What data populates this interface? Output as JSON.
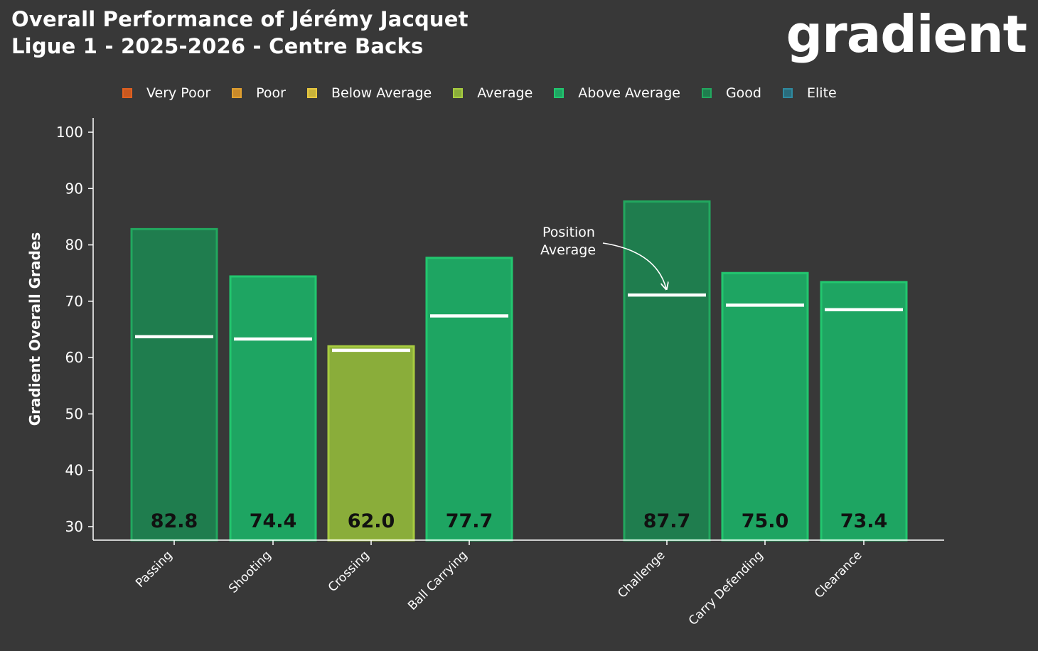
{
  "header": {
    "title_line1": "Overall Performance of Jérémy Jacquet",
    "title_line2": "Ligue 1 - 2025-2026 - Centre Backs",
    "brand": "gradient"
  },
  "legend": {
    "items": [
      {
        "label": "Very Poor",
        "fill": "#c9581f",
        "stroke": "#e06020"
      },
      {
        "label": "Poor",
        "fill": "#c98a2a",
        "stroke": "#e0a030"
      },
      {
        "label": "Below Average",
        "fill": "#c8b23a",
        "stroke": "#e8c840"
      },
      {
        "label": "Average",
        "fill": "#8aad3a",
        "stroke": "#a8cc40"
      },
      {
        "label": "Above Average",
        "fill": "#1ea562",
        "stroke": "#22c76f"
      },
      {
        "label": "Good",
        "fill": "#1f7d4e",
        "stroke": "#22a85f"
      },
      {
        "label": "Elite",
        "fill": "#2a6c7c",
        "stroke": "#2f8aa0"
      }
    ]
  },
  "annotation": {
    "line1": "Position",
    "line2": "Average"
  },
  "chart_data": {
    "type": "bar",
    "title": "Overall Performance of Jérémy Jacquet",
    "subtitle": "Ligue 1 - 2025-2026 - Centre Backs",
    "xlabel": "",
    "ylabel": "Gradient Overall Grades",
    "ylim": [
      30,
      100
    ],
    "yticks": [
      30,
      40,
      50,
      60,
      70,
      80,
      90,
      100
    ],
    "grid": false,
    "legend_placement": "top",
    "categories": [
      "Passing",
      "Shooting",
      "Crossing",
      "Ball Carrying",
      "Challenge",
      "Carry Defending",
      "Clearance"
    ],
    "group_gap_after": 3,
    "values": [
      82.8,
      74.4,
      62.0,
      77.7,
      87.7,
      75.0,
      73.4
    ],
    "position_average": [
      63.7,
      63.3,
      61.3,
      67.4,
      71.1,
      69.3,
      68.5
    ],
    "grades": [
      "Good",
      "Above Average",
      "Average",
      "Above Average",
      "Good",
      "Above Average",
      "Above Average"
    ],
    "value_labels": [
      "82.8",
      "74.4",
      "62.0",
      "77.7",
      "87.7",
      "75.0",
      "73.4"
    ]
  }
}
